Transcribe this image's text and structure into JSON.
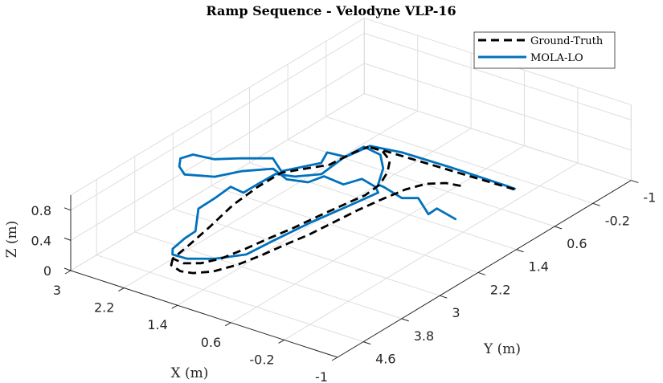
{
  "chart_data": {
    "type": "line3d",
    "title": "Ramp Sequence - Velodyne VLP-16",
    "xlabel": "X (m)",
    "ylabel": "Y (m)",
    "zlabel": "Z (m)",
    "xlim": [
      -1,
      3
    ],
    "ylim": [
      -1,
      5.14
    ],
    "zlim": [
      0,
      1
    ],
    "xticks": [
      3,
      2.2,
      1.4,
      0.6,
      -0.2,
      -1
    ],
    "xtick_labels": [
      "3",
      "2.2",
      "1.4",
      "0.6",
      "-0.2",
      "-1"
    ],
    "yticks": [
      -1,
      -0.2,
      0.6,
      1.4,
      2.2,
      3,
      3.8,
      4.6
    ],
    "ytick_labels": [
      "-1",
      "-0.2",
      "0.6",
      "1.4",
      "2.2",
      "3",
      "3.8",
      "4.6"
    ],
    "zticks": [
      0,
      0.4,
      0.8
    ],
    "ztick_labels": [
      "0",
      "0.4",
      "0.8"
    ],
    "grid": true,
    "legend_position": "top-right",
    "series": [
      {
        "name": "Ground-Truth",
        "color": "#000000",
        "style": "dashed",
        "segments": [
          [
            [
              -0.01,
              0.06,
              0
            ],
            [
              0.93,
              0.1,
              0
            ],
            [
              1.86,
              0.14,
              0
            ],
            [
              2.1,
              0.17,
              0
            ],
            [
              1.9,
              0.16,
              0
            ],
            [
              1.67,
              0.32,
              0
            ],
            [
              1.5,
              0.61,
              0
            ],
            [
              1.38,
              0.94,
              0
            ],
            [
              1.35,
              1.28,
              0
            ],
            [
              1.41,
              1.69,
              0
            ],
            [
              1.47,
              2.12,
              0
            ],
            [
              1.52,
              2.55,
              0
            ],
            [
              1.59,
              2.96,
              0
            ],
            [
              1.65,
              3.37,
              0
            ],
            [
              1.73,
              3.77,
              0
            ],
            [
              1.85,
              4.02,
              0
            ],
            [
              2.02,
              4.15,
              0
            ],
            [
              2.2,
              4.12,
              0
            ],
            [
              2.26,
              3.7,
              0
            ],
            [
              2.35,
              3.15,
              0
            ],
            [
              2.48,
              2.47,
              0
            ],
            [
              2.53,
              1.89,
              0
            ],
            [
              2.53,
              1.39,
              0
            ],
            [
              2.36,
              1.12,
              0
            ],
            [
              2.19,
              0.86,
              0
            ],
            [
              2.15,
              0.41,
              0
            ],
            [
              2.1,
              0.17,
              0
            ]
          ],
          [
            [
              2.2,
              4.12,
              0
            ],
            [
              2.11,
              4.28,
              0
            ],
            [
              1.92,
              4.35,
              0
            ],
            [
              1.77,
              4.3,
              0
            ],
            [
              1.6,
              4.12,
              0
            ],
            [
              1.47,
              3.79,
              0
            ],
            [
              1.39,
              3.4,
              0
            ],
            [
              1.33,
              2.99,
              0
            ],
            [
              1.26,
              2.58,
              0
            ],
            [
              1.22,
              2.13,
              0
            ],
            [
              1.18,
              1.68,
              0
            ],
            [
              1.12,
              1.25,
              0
            ],
            [
              1.05,
              0.86,
              0
            ],
            [
              0.94,
              0.58,
              0
            ],
            [
              0.76,
              0.42,
              0
            ],
            [
              0.55,
              0.37,
              0
            ]
          ]
        ]
      },
      {
        "name": "MOLA-LO",
        "color": "#0072BD",
        "style": "solid",
        "segments": [
          [
            [
              0.0,
              0.04,
              0
            ],
            [
              0.98,
              0.03,
              0
            ],
            [
              1.68,
              0.05,
              0
            ],
            [
              2.1,
              0.14,
              0
            ],
            [
              2.16,
              0.56,
              0
            ],
            [
              2.41,
              0.6,
              0
            ],
            [
              2.3,
              0.88,
              0
            ],
            [
              1.7,
              2.55,
              0.7
            ],
            [
              1.99,
              2.32,
              0.7
            ],
            [
              2.3,
              2.55,
              0.7
            ],
            [
              2.55,
              2.77,
              0.7
            ],
            [
              2.83,
              2.82,
              0.7
            ],
            [
              2.89,
              3.0,
              0.7
            ],
            [
              2.77,
              3.19,
              0.7
            ],
            [
              2.59,
              3.33,
              0.7
            ],
            [
              2.26,
              3.16,
              0.7
            ],
            [
              2.09,
              2.84,
              0.7
            ],
            [
              1.82,
              2.55,
              0.7
            ],
            [
              1.52,
              2.69,
              0.7
            ],
            [
              1.75,
              1.92,
              0.3
            ],
            [
              1.69,
              1.67,
              0.3
            ],
            [
              1.37,
              1.71,
              0.3
            ],
            [
              1.28,
              1.45,
              0.3
            ],
            [
              1.02,
              1.53,
              0.3
            ],
            [
              0.9,
              1.64,
              0.3
            ],
            [
              1.34,
              1.66,
              0
            ],
            [
              1.44,
              2.29,
              0
            ],
            [
              1.51,
              2.99,
              0
            ],
            [
              1.55,
              3.49,
              0
            ],
            [
              1.79,
              3.82,
              0
            ],
            [
              2.06,
              4.02,
              0
            ],
            [
              2.27,
              4.03,
              0
            ],
            [
              2.36,
              3.9,
              0
            ],
            [
              2.41,
              3.58,
              0
            ],
            [
              2.42,
              3.34,
              0
            ],
            [
              2.39,
              3.32,
              0.3
            ],
            [
              2.4,
              2.96,
              0.3
            ],
            [
              2.43,
              2.59,
              0.3
            ],
            [
              2.21,
              2.63,
              0.3
            ],
            [
              2.21,
              2.34,
              0.3
            ],
            [
              2.2,
              1.97,
              0.3
            ],
            [
              1.97,
              1.89,
              0.3
            ],
            [
              1.75,
              1.64,
              0.3
            ],
            [
              1.8,
              1.12,
              0.3
            ],
            [
              1.78,
              0.71,
              0.3
            ],
            [
              1.49,
              0.77,
              0.3
            ],
            [
              1.24,
              1.06,
              0.3
            ],
            [
              1.03,
              1.46,
              0.3
            ],
            [
              0.94,
              1.47,
              0.3
            ],
            [
              0.58,
              1.59,
              0.3
            ],
            [
              0.42,
              1.47,
              0.3
            ],
            [
              0.06,
              1.76,
              0.3
            ],
            [
              0.07,
              1.57,
              0.3
            ],
            [
              -0.28,
              1.67,
              0.3
            ]
          ]
        ]
      }
    ]
  }
}
